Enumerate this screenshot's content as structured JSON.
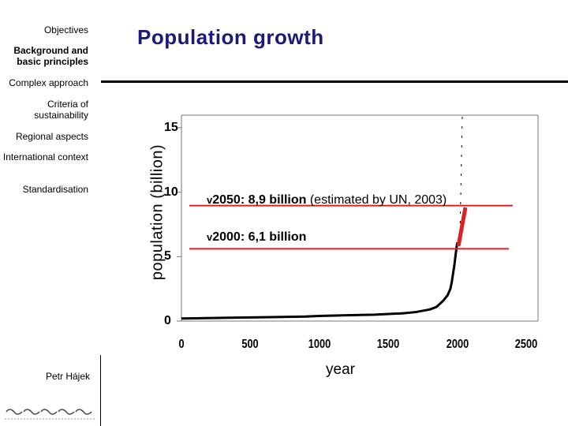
{
  "sidebar": {
    "items": [
      {
        "label": "Objectives",
        "bold": false
      },
      {
        "label": "Background and basic principles",
        "bold": true
      },
      {
        "label": "Complex approach",
        "bold": false
      },
      {
        "label": "Criteria of sustainability",
        "bold": false
      },
      {
        "label": "Regional aspects",
        "bold": false
      },
      {
        "label": "International context",
        "bold": false
      },
      {
        "label": "Standardisation",
        "bold": false
      }
    ],
    "author": "Petr Hájek"
  },
  "slide": {
    "title": "Population growth"
  },
  "colors": {
    "title": "#1a1a7a",
    "highlight": "#e02020"
  },
  "chart_data": {
    "type": "line",
    "xlabel": "year",
    "ylabel": "population (billion)",
    "x_ticks": [
      "0",
      "500",
      "1000",
      "1500",
      "2000",
      "2500"
    ],
    "y_ticks": [
      "0",
      "5",
      "10",
      "15"
    ],
    "xlim": [
      0,
      2500
    ],
    "ylim": [
      0,
      15
    ],
    "series": [
      {
        "x": [
          0,
          300,
          600,
          900,
          1000,
          1200,
          1400,
          1500,
          1600,
          1700,
          1750,
          1800,
          1850,
          1900,
          1930,
          1950,
          1960,
          1970,
          1980,
          1990,
          2000
        ],
        "y": [
          0.2,
          0.25,
          0.3,
          0.35,
          0.4,
          0.45,
          0.5,
          0.55,
          0.6,
          0.7,
          0.8,
          0.9,
          1.1,
          1.6,
          2.0,
          2.5,
          3.0,
          3.7,
          4.4,
          5.3,
          6.1
        ]
      }
    ],
    "annotations": [
      {
        "marker": "v",
        "label": "2050: 8,9 billion",
        "note": "(estimated by UN, 2003)",
        "year": 2050,
        "value": 8.9
      },
      {
        "marker": "v",
        "label": "2000:  6,1 billion",
        "note": "",
        "year": 2000,
        "value": 6.1
      }
    ]
  }
}
